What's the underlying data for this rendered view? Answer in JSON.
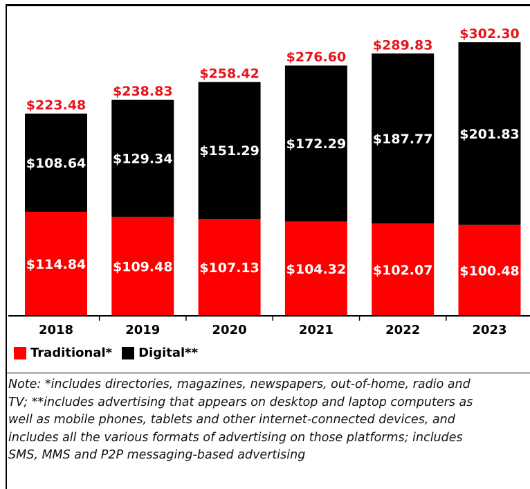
{
  "colors": {
    "traditional": "#ff0000",
    "digital": "#000000",
    "total_label": "#e8141b",
    "segment_label": "#ffffff"
  },
  "chart_data": {
    "type": "bar",
    "stacked": true,
    "title": "",
    "xlabel": "",
    "ylabel": "",
    "categories": [
      "2018",
      "2019",
      "2020",
      "2021",
      "2022",
      "2023"
    ],
    "series": [
      {
        "name": "Traditional*",
        "values": [
          114.84,
          109.48,
          107.13,
          104.32,
          102.07,
          100.48
        ],
        "labels": [
          "$114.84",
          "$109.48",
          "$107.13",
          "$104.32",
          "$102.07",
          "$100.48"
        ]
      },
      {
        "name": "Digital**",
        "values": [
          108.64,
          129.34,
          151.29,
          172.29,
          187.77,
          201.83
        ],
        "labels": [
          "$108.64",
          "$129.34",
          "$151.29",
          "$172.29",
          "$187.77",
          "$201.83"
        ]
      }
    ],
    "totals": [
      223.48,
      238.83,
      258.42,
      276.6,
      289.83,
      302.3
    ],
    "total_labels": [
      "$223.48",
      "$238.83",
      "$258.42",
      "$276.60",
      "$289.83",
      "$302.30"
    ],
    "ylim": [
      0,
      302.3
    ],
    "grid": false,
    "legend_position": "bottom-left"
  },
  "legend": {
    "traditional": "Traditional*",
    "digital": "Digital**"
  },
  "note": {
    "lines": [
      "Note: *includes directories, magazines, newspapers, out-of-home, radio and",
      "TV; **includes advertising that appears on desktop and laptop computers as",
      "well as mobile phones, tablets and other internet-connected devices, and",
      "includes all the various formats of advertising on those platforms; includes",
      "SMS, MMS and P2P messaging-based advertising"
    ]
  }
}
